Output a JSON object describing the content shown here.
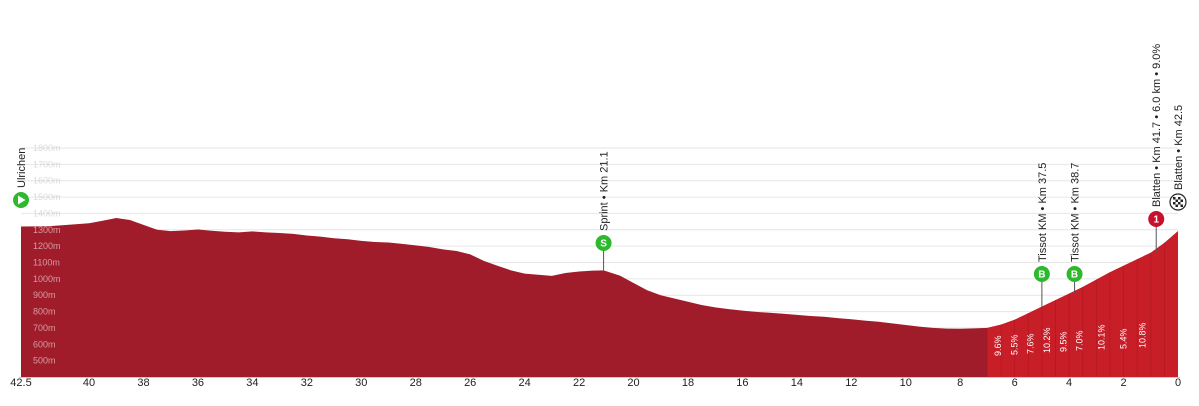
{
  "chart_data": {
    "type": "area",
    "title": "",
    "xlabel": "",
    "ylabel": "",
    "x_direction": "descending",
    "xlim": [
      42.5,
      0
    ],
    "ylim": [
      400,
      1800
    ],
    "x_ticks": [
      "42.5",
      "40",
      "38",
      "36",
      "34",
      "32",
      "30",
      "28",
      "26",
      "24",
      "22",
      "20",
      "18",
      "16",
      "14",
      "12",
      "10",
      "8",
      "6",
      "4",
      "2",
      "0"
    ],
    "y_ticks": [
      "500m",
      "600m",
      "700m",
      "800m",
      "900m",
      "1000m",
      "1100m",
      "1200m",
      "1300m",
      "1400m",
      "1500m",
      "1600m",
      "1700m",
      "1800m"
    ],
    "grid": true,
    "colors": {
      "profile": "#a01c2a",
      "climb": "#c81e28",
      "sprint_badge": "#2eb82e",
      "kom_badge": "#c8102e"
    },
    "series": [
      {
        "values": [
          [
            42.5,
            1320
          ],
          [
            41.5,
            1322
          ],
          [
            40.8,
            1330
          ],
          [
            40.0,
            1340
          ],
          [
            39.5,
            1355
          ],
          [
            39.0,
            1372
          ],
          [
            38.5,
            1360
          ],
          [
            38.0,
            1330
          ],
          [
            37.5,
            1300
          ],
          [
            37.0,
            1292
          ],
          [
            36.5,
            1296
          ],
          [
            36.0,
            1302
          ],
          [
            35.5,
            1294
          ],
          [
            35.0,
            1288
          ],
          [
            34.5,
            1284
          ],
          [
            34.0,
            1290
          ],
          [
            33.5,
            1284
          ],
          [
            33.0,
            1280
          ],
          [
            32.5,
            1275
          ],
          [
            32.0,
            1265
          ],
          [
            31.5,
            1258
          ],
          [
            31.0,
            1248
          ],
          [
            30.5,
            1242
          ],
          [
            30.0,
            1232
          ],
          [
            29.5,
            1225
          ],
          [
            29.0,
            1222
          ],
          [
            28.5,
            1214
          ],
          [
            28.0,
            1205
          ],
          [
            27.5,
            1195
          ],
          [
            27.0,
            1180
          ],
          [
            26.5,
            1170
          ],
          [
            26.0,
            1150
          ],
          [
            25.5,
            1110
          ],
          [
            25.0,
            1080
          ],
          [
            24.5,
            1052
          ],
          [
            24.0,
            1032
          ],
          [
            23.5,
            1025
          ],
          [
            23.0,
            1018
          ],
          [
            22.5,
            1036
          ],
          [
            22.0,
            1045
          ],
          [
            21.5,
            1050
          ],
          [
            21.1,
            1052
          ],
          [
            20.5,
            1020
          ],
          [
            20.0,
            975
          ],
          [
            19.5,
            930
          ],
          [
            19.0,
            900
          ],
          [
            18.5,
            880
          ],
          [
            18.0,
            860
          ],
          [
            17.5,
            840
          ],
          [
            17.0,
            826
          ],
          [
            16.5,
            815
          ],
          [
            16.0,
            806
          ],
          [
            15.5,
            798
          ],
          [
            15.0,
            793
          ],
          [
            14.5,
            787
          ],
          [
            14.0,
            780
          ],
          [
            13.5,
            773
          ],
          [
            13.0,
            768
          ],
          [
            12.5,
            760
          ],
          [
            12.0,
            753
          ],
          [
            11.5,
            745
          ],
          [
            11.0,
            738
          ],
          [
            10.5,
            728
          ],
          [
            10.0,
            718
          ],
          [
            9.5,
            708
          ],
          [
            9.0,
            700
          ],
          [
            8.5,
            696
          ],
          [
            8.0,
            695
          ],
          [
            7.5,
            697
          ],
          [
            7.0,
            700
          ],
          [
            6.5,
            720
          ],
          [
            6.0,
            750
          ],
          [
            5.5,
            790
          ],
          [
            5.0,
            830
          ],
          [
            4.5,
            870
          ],
          [
            4.0,
            910
          ],
          [
            3.5,
            950
          ],
          [
            3.0,
            995
          ],
          [
            2.5,
            1040
          ],
          [
            2.0,
            1080
          ],
          [
            1.5,
            1120
          ],
          [
            1.0,
            1160
          ],
          [
            0.5,
            1220
          ],
          [
            0.0,
            1292
          ]
        ]
      }
    ],
    "gradient_labels": [
      "9.6%",
      "5.5%",
      "7.6%",
      "10.2%",
      "9.5%",
      "7.0%",
      "10.1%",
      "5.4%",
      "10.8%"
    ],
    "markers": [
      {
        "label": "Ulrichen",
        "badge": "",
        "km": 42.5,
        "kind": "start"
      },
      {
        "label": "Sprint • Km 21.1",
        "badge": "S",
        "km": 21.1,
        "kind": "sprint"
      },
      {
        "label": "Tissot KM • Km 37.5",
        "badge": "B",
        "km": 5.0,
        "kind": "bonus"
      },
      {
        "label": "Tissot KM • Km 38.7",
        "badge": "B",
        "km": 3.8,
        "kind": "bonus"
      },
      {
        "label": "Blatten • Km 41.7 • 6.0 km • 9.0%",
        "badge": "1",
        "km": 0.8,
        "kind": "kom"
      },
      {
        "label": "Blatten • Km 42.5",
        "badge": "",
        "km": 0.0,
        "kind": "finish"
      }
    ]
  }
}
